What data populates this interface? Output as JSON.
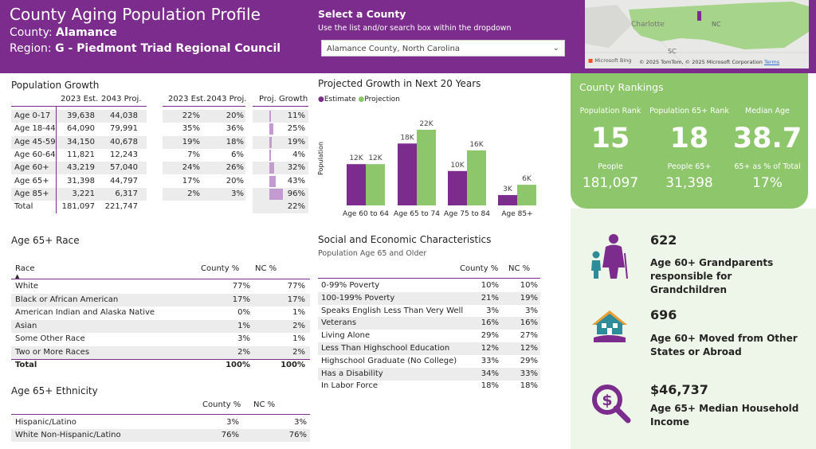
{
  "header": {
    "title": "County Aging Population Profile",
    "county_label": "County: ",
    "county_value": "Alamance",
    "region_label": "Region: ",
    "region_value": "G - Piedmont Triad Regional Council",
    "select_label": "Select a County",
    "select_hint": "Use the list and/or search box within the dropdown",
    "select_value": "Alamance County, North Carolina"
  },
  "map": {
    "city": "Charlotte",
    "nc": "NC",
    "sc": "SC",
    "bing": "Microsoft Bing",
    "copyright": "© 2025 TomTom, © 2025 Microsoft Corporation",
    "terms": "Terms"
  },
  "colors": {
    "purple": "#7b2c8c",
    "green": "#8dc66b",
    "estimate": "#7b2c8c",
    "projection": "#8dc66b"
  },
  "growth": {
    "title": "Population Growth",
    "headers": {
      "est": "2023 Est.",
      "proj": "2043 Proj.",
      "pest": "2023 Est.",
      "pproj": "2043 Proj.",
      "growth": "Proj. Growth"
    },
    "rows": [
      {
        "label": "Age 0-17",
        "est": "39,638",
        "proj": "44,038",
        "pest": "22%",
        "pproj": "20%",
        "growth": "11%",
        "g": 11
      },
      {
        "label": "Age 18-44",
        "est": "64,090",
        "proj": "79,991",
        "pest": "35%",
        "pproj": "36%",
        "growth": "25%",
        "g": 25
      },
      {
        "label": "Age 45-59",
        "est": "34,150",
        "proj": "40,678",
        "pest": "19%",
        "pproj": "18%",
        "growth": "19%",
        "g": 19
      },
      {
        "label": "Age 60-64",
        "est": "11,821",
        "proj": "12,243",
        "pest": "7%",
        "pproj": "6%",
        "growth": "4%",
        "g": 4
      },
      {
        "label": "Age 60+",
        "est": "43,219",
        "proj": "57,040",
        "pest": "24%",
        "pproj": "26%",
        "growth": "32%",
        "g": 32
      },
      {
        "label": "Age 65+",
        "est": "31,398",
        "proj": "44,797",
        "pest": "17%",
        "pproj": "20%",
        "growth": "43%",
        "g": 43
      },
      {
        "label": "Age 85+",
        "est": "3,221",
        "proj": "6,317",
        "pest": "2%",
        "pproj": "3%",
        "growth": "96%",
        "g": 96
      }
    ],
    "total": {
      "label": "Total",
      "est": "181,097",
      "proj": "221,747",
      "growth": "22%"
    }
  },
  "chart_data": {
    "type": "bar",
    "title": "Projected Growth in Next 20 Years",
    "ylabel": "Population",
    "categories": [
      "Age 60 to 64",
      "Age 65 to 74",
      "Age 75 to 84",
      "Age 85+"
    ],
    "series": [
      {
        "name": "Estimate",
        "values": [
          12,
          18,
          10,
          3
        ],
        "labels": [
          "12K",
          "18K",
          "10K",
          "3K"
        ]
      },
      {
        "name": "Projection",
        "values": [
          12,
          22,
          16,
          6
        ],
        "labels": [
          "12K",
          "22K",
          "16K",
          "6K"
        ]
      }
    ],
    "ylim": [
      0,
      22
    ]
  },
  "race": {
    "title": "Age 65+ Race",
    "headers": {
      "name": "Race",
      "county": "County %",
      "nc": "NC %"
    },
    "rows": [
      {
        "name": "White",
        "county": "77%",
        "nc": "77%"
      },
      {
        "name": "Black or African American",
        "county": "17%",
        "nc": "17%"
      },
      {
        "name": "American Indian and Alaska Native",
        "county": "0%",
        "nc": "1%"
      },
      {
        "name": "Asian",
        "county": "1%",
        "nc": "2%"
      },
      {
        "name": "Some Other Race",
        "county": "3%",
        "nc": "1%"
      },
      {
        "name": "Two or More Races",
        "county": "2%",
        "nc": "2%"
      }
    ],
    "total": {
      "name": "Total",
      "county": "100%",
      "nc": "100%"
    }
  },
  "ethnicity": {
    "title": "Age 65+ Ethnicity",
    "headers": {
      "county": "County %",
      "nc": "NC %"
    },
    "rows": [
      {
        "name": "Hispanic/Latino",
        "county": "3%",
        "nc": "3%"
      },
      {
        "name": "White Non-Hispanic/Latino",
        "county": "76%",
        "nc": "76%"
      }
    ]
  },
  "social": {
    "title": "Social and Economic Characteristics",
    "subtitle": "Population Age 65 and Older",
    "headers": {
      "county": "County %",
      "nc": "NC %"
    },
    "rows": [
      {
        "name": "0-99% Poverty",
        "county": "10%",
        "nc": "10%"
      },
      {
        "name": "100-199% Poverty",
        "county": "21%",
        "nc": "19%"
      },
      {
        "name": "Speaks English Less Than Very Well",
        "county": "3%",
        "nc": "3%"
      },
      {
        "name": "Veterans",
        "county": "16%",
        "nc": "16%"
      },
      {
        "name": "Living Alone",
        "county": "29%",
        "nc": "27%"
      },
      {
        "name": "Less Than Highschool Education",
        "county": "12%",
        "nc": "12%"
      },
      {
        "name": "Highschool Graduate (No College)",
        "county": "33%",
        "nc": "29%"
      },
      {
        "name": "Has a Disability",
        "county": "34%",
        "nc": "33%"
      },
      {
        "name": "In Labor Force",
        "county": "18%",
        "nc": "18%"
      }
    ]
  },
  "rankings": {
    "title": "County Rankings",
    "cols": [
      {
        "label": "Population Rank",
        "big": "15",
        "sub": "People",
        "value": "181,097"
      },
      {
        "label": "Population 65+ Rank",
        "big": "18",
        "sub": "People 65+",
        "value": "31,398"
      },
      {
        "label": "Median Age",
        "big": "38.7",
        "sub": "65+ as % of Total",
        "value": "17%"
      }
    ]
  },
  "stats": [
    {
      "number": "622",
      "desc": "Age 60+ Grandparents responsible for Grandchildren",
      "icon": "grandparents-icon"
    },
    {
      "number": "696",
      "desc": "Age 60+ Moved from Other States or Abroad",
      "icon": "house-icon"
    },
    {
      "number": "$46,737",
      "desc": "Age 65+ Median Household Income",
      "icon": "income-icon"
    }
  ]
}
